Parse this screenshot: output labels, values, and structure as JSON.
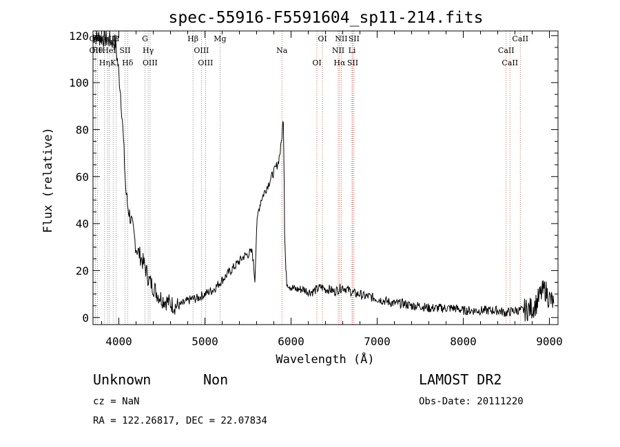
{
  "chart_data": {
    "type": "line",
    "title": "spec-55916-F5591604_sp11-214.fits",
    "xlabel": "Wavelength (Å)",
    "ylabel": "Flux (relative)",
    "xlim": [
      3700,
      9100
    ],
    "ylim": [
      -3,
      122
    ],
    "xticks": [
      4000,
      5000,
      6000,
      7000,
      8000,
      9000
    ],
    "yticks": [
      0,
      20,
      40,
      60,
      80,
      100,
      120
    ],
    "grid": false,
    "series": [
      {
        "x": [
          3700,
          3800,
          3900,
          3960,
          4000,
          4020,
          4040,
          4060,
          4080,
          4100,
          4150,
          4200,
          4250,
          4300,
          4350,
          4400,
          4450,
          4500,
          4550,
          4600,
          4650,
          4700,
          4750,
          4800,
          4850,
          4900,
          4950,
          5000,
          5050,
          5100,
          5150,
          5200,
          5250,
          5300,
          5350,
          5400,
          5450,
          5500,
          5550,
          5580,
          5600,
          5620,
          5650,
          5700,
          5750,
          5800,
          5850,
          5880,
          5900,
          5910,
          5920,
          5925,
          5930,
          5940,
          5950,
          6000,
          6050,
          6100,
          6150,
          6200,
          6250,
          6300,
          6350,
          6400,
          6450,
          6500,
          6550,
          6600,
          6650,
          6700,
          6750,
          6800,
          6850,
          6900,
          7000,
          7100,
          7200,
          7300,
          7400,
          7500,
          7600,
          7700,
          7800,
          7900,
          8000,
          8100,
          8200,
          8300,
          8400,
          8500,
          8600,
          8700,
          8800,
          8850,
          8900,
          8950,
          9000,
          9050
        ],
        "y": [
          120,
          119,
          118,
          117,
          104,
          96,
          85,
          70,
          55,
          48,
          40,
          30,
          26,
          22,
          16,
          13,
          10,
          8,
          7,
          6,
          5,
          5,
          6,
          7,
          8,
          8,
          9,
          10,
          11,
          12,
          14,
          16,
          18,
          20,
          22,
          24,
          26,
          27,
          28,
          16,
          38,
          45,
          50,
          54,
          58,
          62,
          66,
          72,
          80,
          85,
          60,
          38,
          30,
          20,
          15,
          13,
          12,
          12,
          12,
          11,
          11,
          12,
          13,
          12,
          12,
          11,
          12,
          13,
          12,
          11,
          10,
          10,
          9,
          9,
          8,
          7,
          6,
          6,
          5,
          5,
          4,
          4,
          4,
          4,
          3,
          3,
          3,
          3,
          3,
          2,
          3,
          3,
          4,
          6,
          10,
          12,
          8,
          6
        ]
      }
    ],
    "lines": [
      {
        "x": 3727,
        "labels": [
          "OII",
          "OII"
        ]
      },
      {
        "x": 3750,
        "labels": [
          "Hθ"
        ]
      },
      {
        "x": 3835,
        "labels": [
          "Hη"
        ]
      },
      {
        "x": 3869,
        "labels": [
          "NeIII"
        ]
      },
      {
        "x": 3889,
        "labels": [
          "HeI"
        ]
      },
      {
        "x": 3934,
        "labels": [
          "K"
        ]
      },
      {
        "x": 3969,
        "labels": [
          "H"
        ]
      },
      {
        "x": 4072,
        "labels": [
          "SII"
        ]
      },
      {
        "x": 4102,
        "labels": [
          "Hδ"
        ]
      },
      {
        "x": 4304,
        "labels": [
          "G"
        ]
      },
      {
        "x": 4341,
        "labels": [
          "Hγ"
        ]
      },
      {
        "x": 4363,
        "labels": [
          "OIII"
        ]
      },
      {
        "x": 4861,
        "labels": [
          "Hβ"
        ]
      },
      {
        "x": 4959,
        "labels": [
          "OIII"
        ]
      },
      {
        "x": 5007,
        "labels": [
          "OIII"
        ]
      },
      {
        "x": 5175,
        "labels": [
          "Mg"
        ]
      },
      {
        "x": 5894,
        "labels": [
          "Na"
        ]
      },
      {
        "x": 6300,
        "labels": [
          "OI"
        ]
      },
      {
        "x": 6364,
        "labels": [
          "OI"
        ]
      },
      {
        "x": 6548,
        "labels": [
          "NII"
        ]
      },
      {
        "x": 6563,
        "labels": [
          "Hα"
        ]
      },
      {
        "x": 6583,
        "labels": [
          "NII"
        ]
      },
      {
        "x": 6708,
        "labels": [
          "Li"
        ]
      },
      {
        "x": 6716,
        "labels": [
          "SII"
        ]
      },
      {
        "x": 6731,
        "labels": [
          "SII"
        ]
      },
      {
        "x": 8498,
        "labels": [
          "CaII"
        ]
      },
      {
        "x": 8542,
        "labels": [
          "CaII"
        ]
      },
      {
        "x": 8662,
        "labels": [
          "CaII"
        ]
      }
    ]
  },
  "footer": {
    "class_text": "Unknown",
    "subclass_text": "Non",
    "survey": "LAMOST DR2",
    "cz": "cz = NaN",
    "obs_date": "Obs-Date: 20111220",
    "coords": "RA = 122.26817, DEC =  22.07834"
  }
}
